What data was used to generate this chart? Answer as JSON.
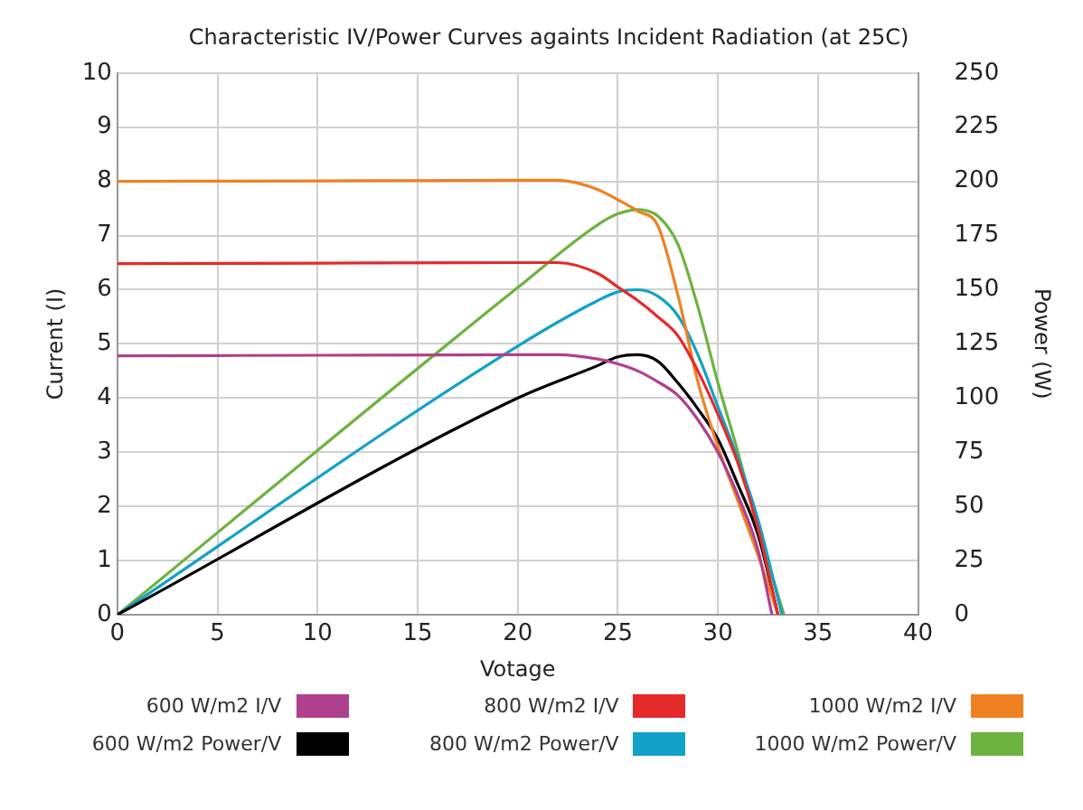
{
  "chart_data": {
    "type": "line",
    "title": "Characteristic IV/Power Curves againts Incident Radiation (at 25C)",
    "xlabel": "Votage",
    "ylabel": "Current (I)",
    "y2label": "Power (W)",
    "xlim": [
      0,
      40
    ],
    "xticks": [
      0,
      5,
      10,
      15,
      20,
      25,
      30,
      35,
      40
    ],
    "ylim": [
      0,
      10
    ],
    "yticks": [
      0,
      1,
      2,
      3,
      4,
      5,
      6,
      7,
      8,
      9,
      10
    ],
    "y2lim": [
      0,
      250
    ],
    "y2ticks": [
      0,
      25,
      50,
      75,
      100,
      125,
      150,
      175,
      200,
      225,
      250
    ],
    "grid": true,
    "legend": "bottom",
    "marker": "none",
    "series": [
      {
        "name": "600 W/m2 I/V",
        "color": "#b0408e",
        "x": [
          0,
          10,
          20,
          22,
          24,
          25,
          26,
          27,
          28,
          29,
          30,
          31,
          32,
          32.7
        ],
        "values": [
          4.78,
          4.79,
          4.8,
          4.8,
          4.72,
          4.63,
          4.5,
          4.3,
          4.05,
          3.6,
          3.0,
          2.2,
          1.2,
          0
        ]
      },
      {
        "name": "800 W/m2 I/V",
        "color": "#e52a2a",
        "x": [
          0,
          10,
          20,
          22,
          24,
          25,
          26,
          27,
          28,
          29,
          30,
          31,
          32,
          33
        ],
        "values": [
          6.48,
          6.49,
          6.5,
          6.5,
          6.3,
          6.05,
          5.8,
          5.5,
          5.15,
          4.5,
          3.7,
          2.8,
          1.6,
          0
        ]
      },
      {
        "name": "1000 W/m2 I/V",
        "color": "#f08122",
        "x": [
          0,
          10,
          20,
          22,
          24,
          25,
          26,
          27,
          28,
          29,
          30,
          31,
          32,
          33
        ],
        "values": [
          8,
          8.01,
          8.02,
          8.02,
          7.85,
          7.66,
          7.45,
          7.18,
          5.9,
          4.3,
          3.1,
          2.1,
          1.1,
          0
        ]
      },
      {
        "name": "600 W/m2 Power/V",
        "color": "#000000",
        "axis": "y2",
        "x": [
          0,
          20,
          24,
          25,
          26,
          27,
          28,
          29,
          30,
          31,
          32,
          33
        ],
        "values": [
          0,
          100,
          115,
          119,
          120,
          117,
          107,
          95,
          81,
          60,
          37,
          0
        ]
      },
      {
        "name": "800 W/m2 Power/V",
        "color": "#12a2c8",
        "axis": "y2",
        "x": [
          0,
          20,
          24,
          25,
          26,
          27,
          28,
          29,
          30,
          31,
          32,
          33.2
        ],
        "values": [
          0,
          124,
          145,
          149,
          150,
          147,
          138,
          120,
          96,
          72,
          44,
          0
        ]
      },
      {
        "name": "1000 W/m2 Power/V",
        "color": "#6db33f",
        "axis": "y2",
        "x": [
          0,
          20,
          24,
          25,
          26,
          27,
          28,
          29,
          30,
          31,
          32,
          33.3
        ],
        "values": [
          0,
          151,
          180,
          185,
          187,
          184,
          171,
          142,
          107,
          75,
          40,
          0
        ]
      }
    ]
  }
}
